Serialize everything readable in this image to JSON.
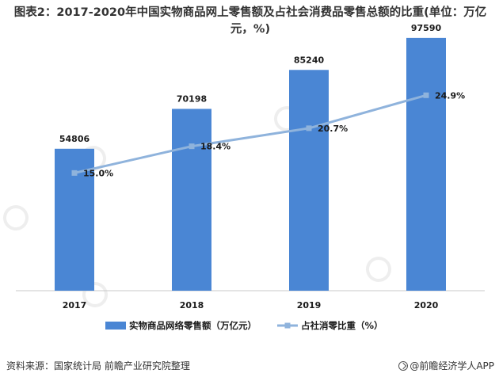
{
  "title": "图表2：2017-2020年中国实物商品网上零售额及占社会消费品零售总额的比重(单位：万亿元，%)",
  "footer": {
    "source": "资料来源：国家统计局 前瞻产业研究院整理",
    "brand": "@前瞻经济学人APP"
  },
  "colors": {
    "bar": "#4a86d4",
    "line": "#8fb3dc",
    "text": "#1a1a1a",
    "axis": "#c8c8c8"
  },
  "chart_data": {
    "type": "bar",
    "title": "图表2：2017-2020年中国实物商品网上零售额及占社会消费品零售总额的比重(单位：万亿元，%)",
    "categories": [
      "2017",
      "2018",
      "2019",
      "2020"
    ],
    "series": [
      {
        "name": "实物商品网络零售额（万亿元）",
        "kind": "bar",
        "axis": "left",
        "values": [
          54806,
          70198,
          85240,
          97590
        ],
        "labels": [
          "54806",
          "70198",
          "85240",
          "97590"
        ]
      },
      {
        "name": "占社消零比重（%）",
        "kind": "line",
        "axis": "right",
        "values": [
          15.0,
          18.4,
          20.7,
          24.9
        ],
        "labels": [
          "15.0%",
          "18.4%",
          "20.7%",
          "24.9%"
        ]
      }
    ],
    "ylim_left": [
      0,
      100000
    ],
    "ylim_right": [
      0,
      33
    ],
    "grid": false,
    "legend": "bottom",
    "xlabel": "",
    "ylabel": ""
  }
}
